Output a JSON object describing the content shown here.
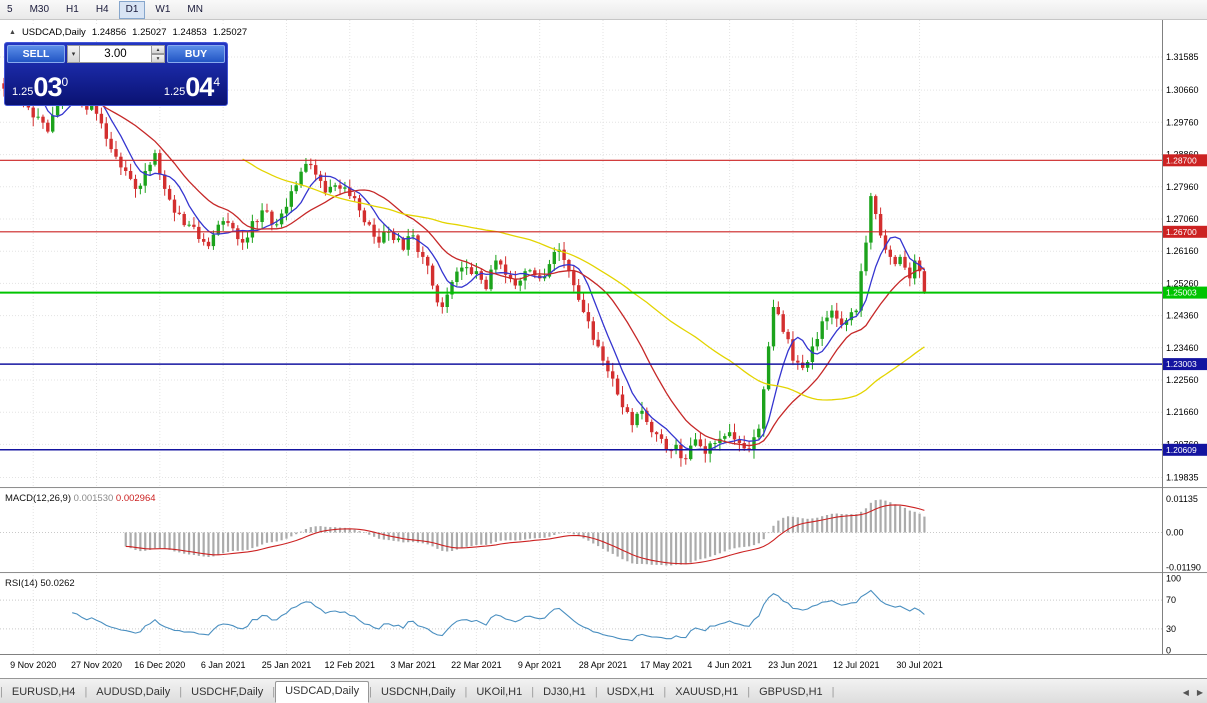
{
  "toolbar": {
    "timeframes": [
      {
        "label": "5",
        "active": false
      },
      {
        "label": "M30",
        "active": false
      },
      {
        "label": "H1",
        "active": false
      },
      {
        "label": "H4",
        "active": false
      },
      {
        "label": "D1",
        "active": true
      },
      {
        "label": "W1",
        "active": false
      },
      {
        "label": "MN",
        "active": false
      }
    ]
  },
  "chart_header": {
    "marker": "▲",
    "symbol": "USDCAD,Daily",
    "open": "1.24856",
    "high": "1.25027",
    "low": "1.24853",
    "close": "1.25027"
  },
  "trade_panel": {
    "sell_label": "SELL",
    "buy_label": "BUY",
    "volume": "3.00",
    "volume_up_icon": "▴",
    "volume_down_icon": "▾",
    "volume_dropdown_icon": "▾",
    "sell_price_prefix": "1.25",
    "sell_price_big": "03",
    "sell_price_sup": "0",
    "buy_price_prefix": "1.25",
    "buy_price_big": "04",
    "buy_price_sup": "4"
  },
  "chart_data": {
    "type": "candlestick",
    "symbol": "USDCAD",
    "timeframe": "Daily",
    "ohlc_current": {
      "open": 1.24856,
      "high": 1.25027,
      "low": 1.24853,
      "close": 1.25027
    },
    "ylim": [
      1.1957,
      1.3262
    ],
    "n_candles": 190,
    "bull_color": "#1ca31c",
    "bear_color": "#d32f2f",
    "close_path_anchors": [
      [
        0,
        1.307
      ],
      [
        2,
        1.314
      ],
      [
        4,
        1.304
      ],
      [
        6,
        1.299
      ],
      [
        9,
        1.295
      ],
      [
        12,
        1.306
      ],
      [
        14,
        1.309
      ],
      [
        16,
        1.304
      ],
      [
        19,
        1.3
      ],
      [
        21,
        1.293
      ],
      [
        23,
        1.288
      ],
      [
        25,
        1.284
      ],
      [
        27,
        1.279
      ],
      [
        29,
        1.284
      ],
      [
        31,
        1.289
      ],
      [
        32,
        1.283
      ],
      [
        34,
        1.276
      ],
      [
        36,
        1.272
      ],
      [
        38,
        1.269
      ],
      [
        40,
        1.265
      ],
      [
        42,
        1.263
      ],
      [
        44,
        1.269
      ],
      [
        45,
        1.27
      ],
      [
        47,
        1.268
      ],
      [
        49,
        1.264
      ],
      [
        51,
        1.27
      ],
      [
        53,
        1.273
      ],
      [
        55,
        1.269
      ],
      [
        58,
        1.274
      ],
      [
        60,
        1.28
      ],
      [
        62,
        1.286
      ],
      [
        64,
        1.283
      ],
      [
        66,
        1.278
      ],
      [
        68,
        1.28
      ],
      [
        71,
        1.277
      ],
      [
        73,
        1.273
      ],
      [
        75,
        1.269
      ],
      [
        77,
        1.264
      ],
      [
        79,
        1.267
      ],
      [
        82,
        1.262
      ],
      [
        84,
        1.266
      ],
      [
        86,
        1.26
      ],
      [
        88,
        1.252
      ],
      [
        90,
        1.246
      ],
      [
        92,
        1.253
      ],
      [
        94,
        1.257
      ],
      [
        97,
        1.256
      ],
      [
        99,
        1.251
      ],
      [
        101,
        1.259
      ],
      [
        103,
        1.255
      ],
      [
        105,
        1.252
      ],
      [
        107,
        1.256
      ],
      [
        110,
        1.254
      ],
      [
        112,
        1.258
      ],
      [
        114,
        1.262
      ],
      [
        116,
        1.256
      ],
      [
        118,
        1.248
      ],
      [
        120,
        1.242
      ],
      [
        122,
        1.235
      ],
      [
        123,
        1.231
      ],
      [
        125,
        1.226
      ],
      [
        127,
        1.218
      ],
      [
        129,
        1.213
      ],
      [
        131,
        1.217
      ],
      [
        133,
        1.211
      ],
      [
        136,
        1.206
      ],
      [
        138,
        1.2075
      ],
      [
        140,
        1.2035
      ],
      [
        142,
        1.209
      ],
      [
        144,
        1.205
      ],
      [
        146,
        1.208
      ],
      [
        149,
        1.211
      ],
      [
        151,
        1.208
      ],
      [
        153,
        1.206
      ],
      [
        155,
        1.212
      ],
      [
        156,
        1.223
      ],
      [
        157,
        1.235
      ],
      [
        158,
        1.246
      ],
      [
        159,
        1.244
      ],
      [
        161,
        1.237
      ],
      [
        162,
        1.231
      ],
      [
        164,
        1.229
      ],
      [
        166,
        1.235
      ],
      [
        168,
        1.242
      ],
      [
        170,
        1.245
      ],
      [
        172,
        1.241
      ],
      [
        175,
        1.245
      ],
      [
        176,
        1.256
      ],
      [
        177,
        1.264
      ],
      [
        178,
        1.277
      ],
      [
        179,
        1.272
      ],
      [
        180,
        1.266
      ],
      [
        181,
        1.262
      ],
      [
        182,
        1.26
      ],
      [
        183,
        1.258
      ],
      [
        184,
        1.26
      ],
      [
        185,
        1.257
      ],
      [
        186,
        1.254
      ],
      [
        187,
        1.259
      ],
      [
        188,
        1.256
      ],
      [
        189,
        1.25027
      ]
    ],
    "y_axis_ticks": [
      "1.31585",
      "1.30660",
      "1.29760",
      "1.28860",
      "1.27960",
      "1.27060",
      "1.26160",
      "1.25260",
      "1.24360",
      "1.23460",
      "1.22560",
      "1.21660",
      "1.20760",
      "1.19835"
    ],
    "x_axis_labels": [
      {
        "index": 6,
        "label": "9 Nov 2020"
      },
      {
        "index": 19,
        "label": "27 Nov 2020"
      },
      {
        "index": 32,
        "label": "16 Dec 2020"
      },
      {
        "index": 45,
        "label": "6 Jan 2021"
      },
      {
        "index": 58,
        "label": "25 Jan 2021"
      },
      {
        "index": 71,
        "label": "12 Feb 2021"
      },
      {
        "index": 84,
        "label": "3 Mar 2021"
      },
      {
        "index": 97,
        "label": "22 Mar 2021"
      },
      {
        "index": 110,
        "label": "9 Apr 2021"
      },
      {
        "index": 123,
        "label": "28 Apr 2021"
      },
      {
        "index": 136,
        "label": "17 May 2021"
      },
      {
        "index": 149,
        "label": "4 Jun 2021"
      },
      {
        "index": 162,
        "label": "23 Jun 2021"
      },
      {
        "index": 175,
        "label": "12 Jul 2021"
      },
      {
        "index": 188,
        "label": "30 Jul 2021"
      }
    ],
    "horizontal_lines": [
      {
        "value": 1.287,
        "label": "1.28700",
        "color": "#cc2222",
        "width": 1.2
      },
      {
        "value": 1.267,
        "label": "1.26700",
        "color": "#cc2222",
        "width": 1.2
      },
      {
        "value": 1.25003,
        "label": "1.25003",
        "color": "#00c400",
        "width": 2
      },
      {
        "value": 1.23003,
        "label": "1.23003",
        "color": "#1414a0",
        "width": 1.5
      },
      {
        "value": 1.20609,
        "label": "1.20609",
        "color": "#1414a0",
        "width": 1.5
      }
    ],
    "moving_averages": [
      {
        "period": 7,
        "color": "#3535d0"
      },
      {
        "period": 18,
        "color": "#c62828"
      },
      {
        "period": 50,
        "color": "#e3d400"
      }
    ],
    "indicators": [
      {
        "type": "macd",
        "label": "MACD(12,26,9)",
        "value_main": "0.001530",
        "value_signal": "0.002964",
        "fast": 12,
        "slow": 26,
        "signal": 9,
        "ylim": [
          -0.0135,
          0.0145
        ],
        "ticks": [
          {
            "label": "0.01135",
            "value": 0.01135
          },
          {
            "label": "0.00",
            "value": 0
          },
          {
            "label": "-0.01190",
            "value": -0.0119
          }
        ],
        "histogram_color": "#ababab",
        "signal_color": "#cc2222"
      },
      {
        "type": "rsi",
        "label": "RSI(14)",
        "value": "50.0262",
        "period": 14,
        "ylim": [
          0,
          100
        ],
        "ticks": [
          {
            "label": "100",
            "value": 100
          },
          {
            "label": "70",
            "value": 70
          },
          {
            "label": "30",
            "value": 30
          },
          {
            "label": "0",
            "value": 0
          }
        ],
        "levels": [
          70,
          30
        ],
        "line_color": "#4a8fc0"
      }
    ]
  },
  "tabs": {
    "scroll_left_icon": "◀",
    "scroll_right_icon": "▶",
    "items": [
      {
        "label": "EURUSD,H4",
        "active": false
      },
      {
        "label": "AUDUSD,Daily",
        "active": false
      },
      {
        "label": "USDCHF,Daily",
        "active": false
      },
      {
        "label": "USDCAD,Daily",
        "active": true
      },
      {
        "label": "USDCNH,Daily",
        "active": false
      },
      {
        "label": "UKOil,H1",
        "active": false
      },
      {
        "label": "DJ30,H1",
        "active": false
      },
      {
        "label": "USDX,H1",
        "active": false
      },
      {
        "label": "XAUUSD,H1",
        "active": false
      },
      {
        "label": "GBPUSD,H1",
        "active": false
      }
    ]
  }
}
